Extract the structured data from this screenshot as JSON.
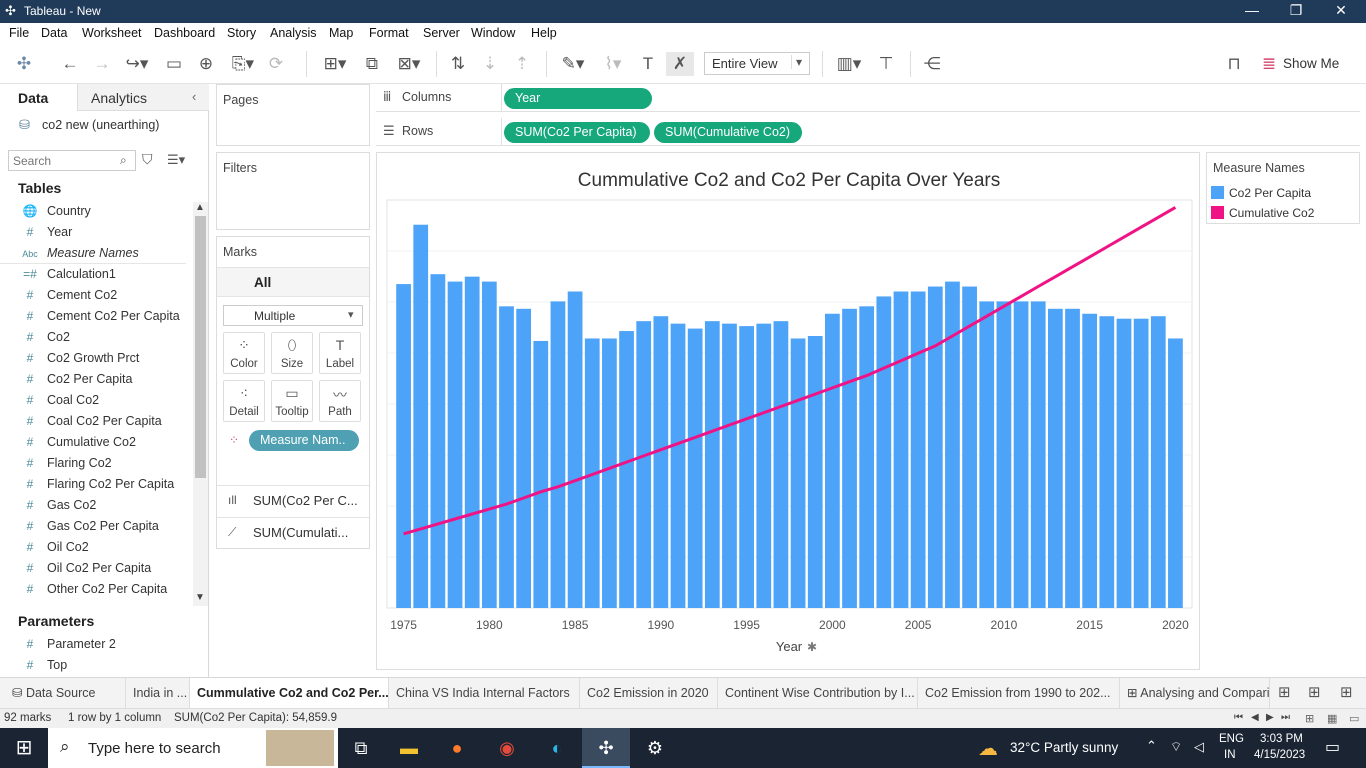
{
  "window": {
    "title": "Tableau - New",
    "min_glyph": "—",
    "restore_glyph": "❐",
    "close_glyph": "✕"
  },
  "menu": [
    "File",
    "Data",
    "Worksheet",
    "Dashboard",
    "Story",
    "Analysis",
    "Map",
    "Format",
    "Server",
    "Window",
    "Help"
  ],
  "toolbar": {
    "view_select": "Entire View",
    "show_me": "Show Me"
  },
  "data_pane": {
    "tab_data": "Data",
    "tab_analytics": "Analytics",
    "datasource": "co2 new (unearthing)",
    "search_placeholder": "Search",
    "tables_heading": "Tables",
    "fields": [
      {
        "icon": "🌐",
        "name": "Country",
        "italic": false
      },
      {
        "icon": "#",
        "name": "Year",
        "italic": false
      },
      {
        "icon": "Abc",
        "name": "Measure Names",
        "italic": true
      },
      {
        "icon": "=#",
        "name": "Calculation1",
        "italic": false
      },
      {
        "icon": "#",
        "name": "Cement Co2",
        "italic": false
      },
      {
        "icon": "#",
        "name": "Cement Co2 Per Capita",
        "italic": false
      },
      {
        "icon": "#",
        "name": "Co2",
        "italic": false
      },
      {
        "icon": "#",
        "name": "Co2 Growth Prct",
        "italic": false
      },
      {
        "icon": "#",
        "name": "Co2 Per Capita",
        "italic": false
      },
      {
        "icon": "#",
        "name": "Coal Co2",
        "italic": false
      },
      {
        "icon": "#",
        "name": "Coal Co2 Per Capita",
        "italic": false
      },
      {
        "icon": "#",
        "name": "Cumulative Co2",
        "italic": false
      },
      {
        "icon": "#",
        "name": "Flaring Co2",
        "italic": false
      },
      {
        "icon": "#",
        "name": "Flaring Co2 Per Capita",
        "italic": false
      },
      {
        "icon": "#",
        "name": "Gas Co2",
        "italic": false
      },
      {
        "icon": "#",
        "name": "Gas Co2 Per Capita",
        "italic": false
      },
      {
        "icon": "#",
        "name": "Oil Co2",
        "italic": false
      },
      {
        "icon": "#",
        "name": "Oil Co2 Per Capita",
        "italic": false
      },
      {
        "icon": "#",
        "name": "Other Co2 Per Capita",
        "italic": false
      }
    ],
    "parameters_heading": "Parameters",
    "parameters": [
      {
        "icon": "#",
        "name": "Parameter 2"
      },
      {
        "icon": "#",
        "name": "Top"
      }
    ]
  },
  "cards": {
    "pages": "Pages",
    "filters": "Filters",
    "marks": "Marks",
    "marks_all": "All",
    "mark_type": "Multiple",
    "mark_buttons": [
      {
        "glyph": "⁘",
        "label": "Color"
      },
      {
        "glyph": "⬯",
        "label": "Size"
      },
      {
        "glyph": "T",
        "label": "Label"
      },
      {
        "glyph": "⁖",
        "label": "Detail"
      },
      {
        "glyph": "▭",
        "label": "Tooltip"
      },
      {
        "glyph": "〰",
        "label": "Path"
      }
    ],
    "color_pill": "Measure Nam..",
    "mark_layers": [
      {
        "glyph": "ıll",
        "label": "SUM(Co2 Per C..."
      },
      {
        "glyph": "⟋",
        "label": "SUM(Cumulati..."
      }
    ]
  },
  "shelves": {
    "columns_label": "Columns",
    "rows_label": "Rows",
    "columns": [
      "Year"
    ],
    "rows": [
      "SUM(Co2 Per Capita)",
      "SUM(Cumulative Co2)"
    ]
  },
  "legend": {
    "title": "Measure Names",
    "items": [
      {
        "name": "Co2 Per Capita",
        "color": "#4da3f7"
      },
      {
        "name": "Cumulative Co2",
        "color": "#ef1385"
      }
    ]
  },
  "chart_data": {
    "type": "bar",
    "title": "Cummulative Co2 and Co2 Per Capita Over Years",
    "xlabel": "Year",
    "x": [
      1975,
      1976,
      1977,
      1978,
      1979,
      1980,
      1981,
      1982,
      1983,
      1984,
      1985,
      1986,
      1987,
      1988,
      1989,
      1990,
      1991,
      1992,
      1993,
      1994,
      1995,
      1996,
      1997,
      1998,
      1999,
      2000,
      2001,
      2002,
      2003,
      2004,
      2005,
      2006,
      2007,
      2008,
      2009,
      2010,
      2011,
      2012,
      2013,
      2014,
      2015,
      2016,
      2017,
      2018,
      2019,
      2020
    ],
    "x_ticks": [
      1975,
      1980,
      1985,
      1990,
      1995,
      2000,
      2005,
      2010,
      2015,
      2020
    ],
    "series": [
      {
        "name": "Co2 Per Capita",
        "kind": "bar",
        "color": "#4da3f7",
        "values": [
          1.31,
          1.55,
          1.35,
          1.32,
          1.34,
          1.32,
          1.22,
          1.21,
          1.08,
          1.24,
          1.28,
          1.09,
          1.09,
          1.12,
          1.16,
          1.18,
          1.15,
          1.13,
          1.16,
          1.15,
          1.14,
          1.15,
          1.16,
          1.09,
          1.1,
          1.19,
          1.21,
          1.22,
          1.26,
          1.28,
          1.28,
          1.3,
          1.32,
          1.3,
          1.24,
          1.24,
          1.24,
          1.24,
          1.21,
          1.21,
          1.19,
          1.18,
          1.17,
          1.17,
          1.18,
          1.09
        ]
      },
      {
        "name": "Cumulative Co2",
        "kind": "line",
        "color": "#ef1385",
        "values": [
          0.3,
          0.32,
          0.34,
          0.36,
          0.38,
          0.4,
          0.42,
          0.445,
          0.47,
          0.49,
          0.515,
          0.54,
          0.565,
          0.59,
          0.615,
          0.64,
          0.665,
          0.69,
          0.715,
          0.74,
          0.765,
          0.79,
          0.815,
          0.84,
          0.865,
          0.89,
          0.915,
          0.94,
          0.97,
          1.0,
          1.03,
          1.06,
          1.1,
          1.14,
          1.18,
          1.22,
          1.26,
          1.3,
          1.34,
          1.38,
          1.42,
          1.46,
          1.5,
          1.54,
          1.58,
          1.62
        ]
      }
    ],
    "ylim": [
      0,
      1.65
    ]
  },
  "sheet_tabs": [
    "Data Source",
    "India in ...",
    "Cummulative Co2 and Co2 Per...",
    "China VS India Internal Factors",
    "Co2 Emission in 2020",
    "Continent Wise Contribution by I...",
    "Co2 Emission from 1990 to 202...",
    "Analysing and Compari"
  ],
  "status": {
    "marks": "92 marks",
    "dims": "1 row by 1 column",
    "sum": "SUM(Co2 Per Capita): 54,859.9"
  },
  "taskbar": {
    "search": "Type here to search",
    "weather": "32°C  Partly sunny",
    "lang1": "ENG",
    "lang2": "IN",
    "time": "3:03 PM",
    "date": "4/15/2023"
  }
}
